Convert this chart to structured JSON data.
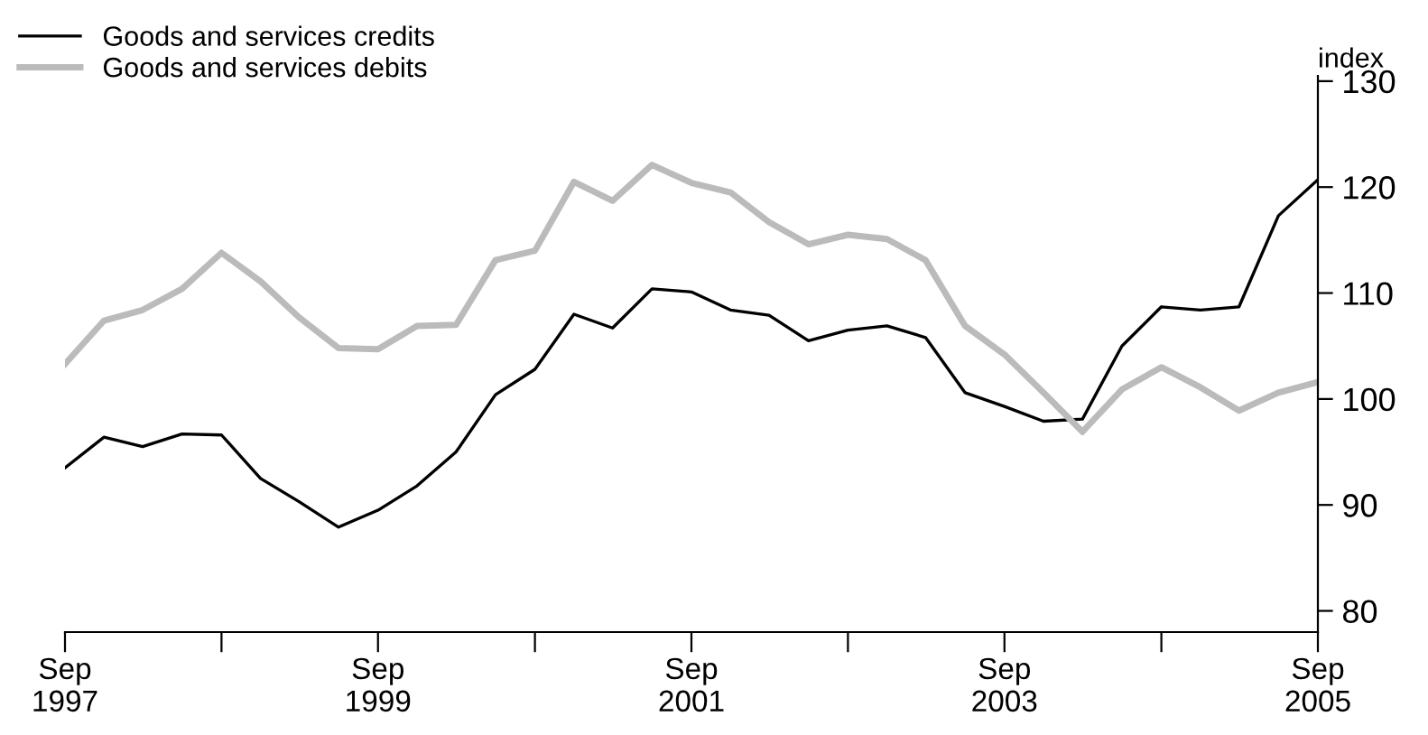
{
  "chart_data": {
    "type": "line",
    "ylabel": "index",
    "x": [
      "1997-09",
      "1997-12",
      "1998-03",
      "1998-06",
      "1998-09",
      "1998-12",
      "1999-03",
      "1999-06",
      "1999-09",
      "1999-12",
      "2000-03",
      "2000-06",
      "2000-09",
      "2000-12",
      "2001-03",
      "2001-06",
      "2001-09",
      "2001-12",
      "2002-03",
      "2002-06",
      "2002-09",
      "2002-12",
      "2003-03",
      "2003-06",
      "2003-09",
      "2003-12",
      "2004-03",
      "2004-06",
      "2004-09",
      "2004-12",
      "2005-03",
      "2005-06",
      "2005-09"
    ],
    "series": [
      {
        "name": "Goods and services credits",
        "color": "#000000",
        "values": [
          93.5,
          96.4,
          95.5,
          96.7,
          96.6,
          92.5,
          90.3,
          87.9,
          89.5,
          91.8,
          95.0,
          100.4,
          102.8,
          108.0,
          106.7,
          110.4,
          110.1,
          108.4,
          107.9,
          105.5,
          106.5,
          106.9,
          105.8,
          100.6,
          99.3,
          97.9,
          98.1,
          105.0,
          108.7,
          108.4,
          108.7,
          117.3,
          120.7
        ]
      },
      {
        "name": "Goods and services debits",
        "color": "#bbbbbb",
        "values": [
          103.3,
          107.4,
          108.4,
          110.4,
          113.8,
          111.1,
          107.7,
          104.8,
          104.7,
          106.9,
          107.0,
          113.1,
          114.0,
          120.5,
          118.7,
          122.1,
          120.4,
          119.5,
          116.7,
          114.6,
          115.5,
          115.1,
          113.1,
          106.9,
          104.2,
          100.6,
          96.9,
          100.9,
          103.0,
          101.1,
          98.9,
          100.6,
          101.6
        ]
      }
    ],
    "xlim": [
      "1997-09",
      "2005-09"
    ],
    "xticks": [
      {
        "value": "1997-09",
        "label": "Sep\n1997"
      },
      {
        "value": "1998-09",
        "label": null
      },
      {
        "value": "1999-09",
        "label": "Sep\n1999"
      },
      {
        "value": "2000-09",
        "label": null
      },
      {
        "value": "2001-09",
        "label": "Sep\n2001"
      },
      {
        "value": "2002-09",
        "label": null
      },
      {
        "value": "2003-09",
        "label": "Sep\n2003"
      },
      {
        "value": "2004-09",
        "label": null
      },
      {
        "value": "2005-09",
        "label": "Sep\n2005"
      }
    ],
    "ylim": [
      78,
      130.5
    ],
    "yticks": [
      80,
      90,
      100,
      110,
      120,
      130
    ],
    "legend": "top left",
    "grid": false,
    "line_style": "solid",
    "marker": "none"
  }
}
